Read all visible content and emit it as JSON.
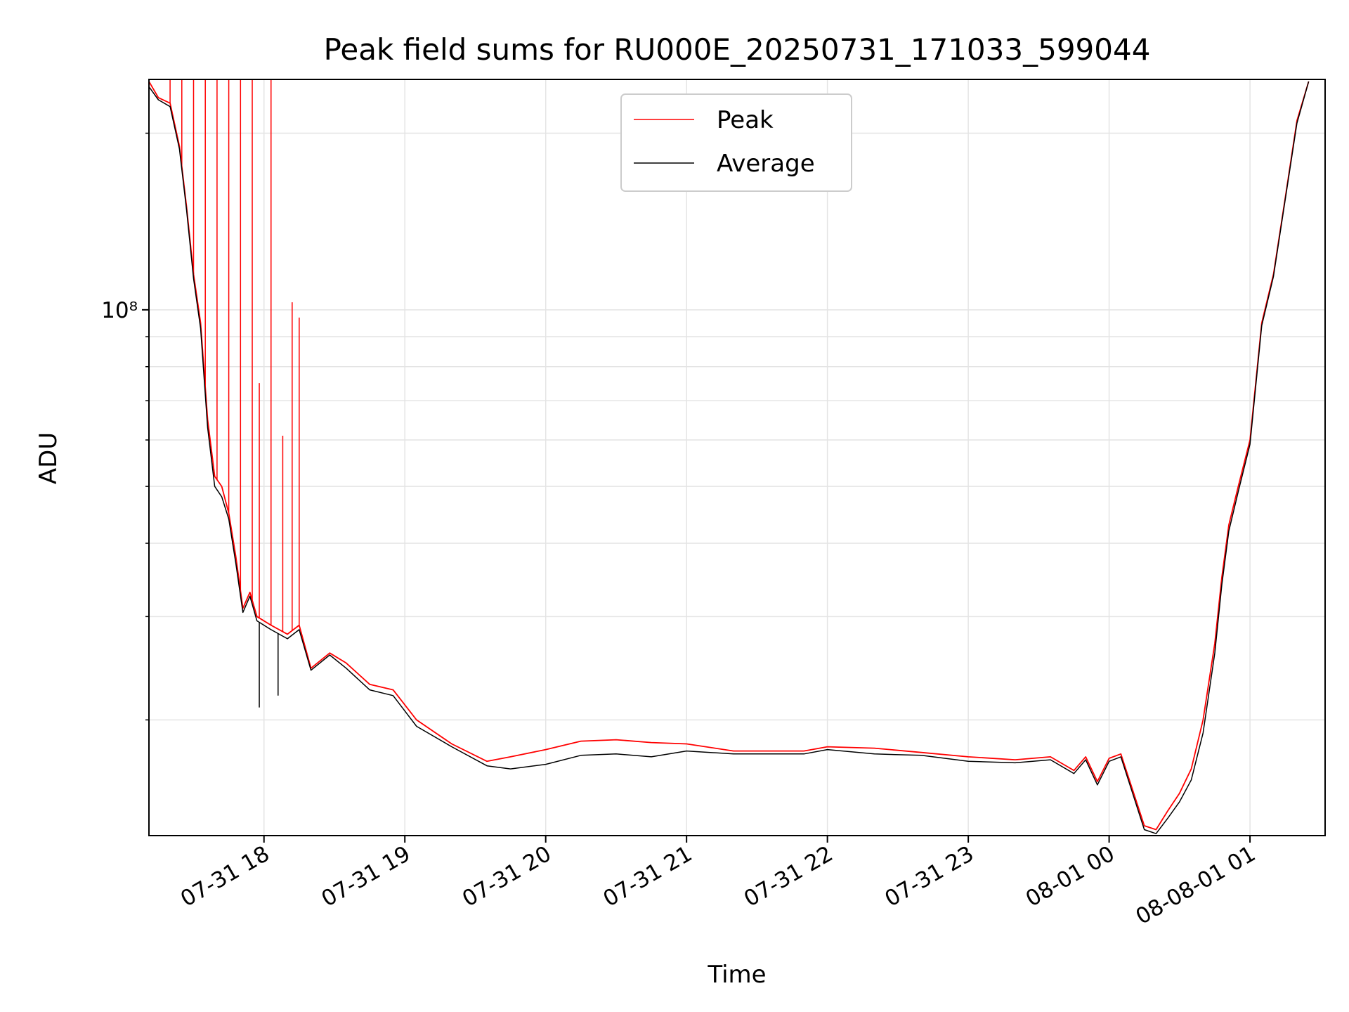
{
  "chart_data": {
    "type": "line",
    "title": "Peak field sums for RU000E_20250731_171033_599044",
    "xlabel": "Time",
    "ylabel": "ADU",
    "y_scale": "log",
    "ylim": [
      12700000,
      247000000
    ],
    "xlim": [
      "2025-07-31 17:11",
      "2025-08-01 01:32"
    ],
    "grid": true,
    "legend_position": "top-center",
    "x_ticks": [
      "07-31 18",
      "07-31 19",
      "07-31 20",
      "07-31 21",
      "07-31 22",
      "07-31 23",
      "08-01 00",
      "08-08-01 01"
    ],
    "x_tick_times": [
      "2025-07-31 18:00",
      "2025-07-31 19:00",
      "2025-07-31 20:00",
      "2025-07-31 21:00",
      "2025-07-31 22:00",
      "2025-07-31 23:00",
      "2025-08-01 00:00",
      "2025-08-01 01:00"
    ],
    "y_major_tick_label": "10⁸",
    "y_major_tick_value": 100000000,
    "y_minor_ticks": [
      20000000,
      30000000,
      40000000,
      50000000,
      60000000,
      70000000,
      80000000,
      90000000,
      200000000
    ],
    "series": [
      {
        "name": "Peak",
        "color": "#ff0000",
        "points": [
          [
            "2025-07-31 17:11",
            245000000
          ],
          [
            "2025-07-31 17:15",
            230000000
          ],
          [
            "2025-07-31 17:20",
            225000000
          ],
          [
            "2025-07-31 17:24",
            190000000
          ],
          [
            "2025-07-31 17:27",
            150000000
          ],
          [
            "2025-07-31 17:30",
            115000000
          ],
          [
            "2025-07-31 17:33",
            95000000
          ],
          [
            "2025-07-31 17:36",
            65000000
          ],
          [
            "2025-07-31 17:39",
            52000000
          ],
          [
            "2025-07-31 17:42",
            50000000
          ],
          [
            "2025-07-31 17:45",
            45000000
          ],
          [
            "2025-07-31 17:48",
            38000000
          ],
          [
            "2025-07-31 17:51",
            31000000
          ],
          [
            "2025-07-31 17:54",
            33000000
          ],
          [
            "2025-07-31 17:57",
            30000000
          ],
          [
            "2025-07-31 18:03",
            29000000
          ],
          [
            "2025-07-31 18:10",
            28000000
          ],
          [
            "2025-07-31 18:15",
            29000000
          ],
          [
            "2025-07-31 18:20",
            24500000
          ],
          [
            "2025-07-31 18:28",
            26000000
          ],
          [
            "2025-07-31 18:35",
            25000000
          ],
          [
            "2025-07-31 18:45",
            23000000
          ],
          [
            "2025-07-31 18:55",
            22500000
          ],
          [
            "2025-07-31 19:05",
            20000000
          ],
          [
            "2025-07-31 19:20",
            18200000
          ],
          [
            "2025-07-31 19:35",
            17000000
          ],
          [
            "2025-07-31 19:45",
            17300000
          ],
          [
            "2025-07-31 20:00",
            17800000
          ],
          [
            "2025-07-31 20:15",
            18400000
          ],
          [
            "2025-07-31 20:30",
            18500000
          ],
          [
            "2025-07-31 20:45",
            18300000
          ],
          [
            "2025-07-31 21:00",
            18200000
          ],
          [
            "2025-07-31 21:20",
            17700000
          ],
          [
            "2025-07-31 21:40",
            17700000
          ],
          [
            "2025-07-31 21:50",
            17700000
          ],
          [
            "2025-07-31 22:00",
            18000000
          ],
          [
            "2025-07-31 22:20",
            17900000
          ],
          [
            "2025-07-31 22:40",
            17600000
          ],
          [
            "2025-07-31 23:00",
            17300000
          ],
          [
            "2025-07-31 23:20",
            17100000
          ],
          [
            "2025-07-31 23:35",
            17300000
          ],
          [
            "2025-07-31 23:45",
            16400000
          ],
          [
            "2025-07-31 23:50",
            17300000
          ],
          [
            "2025-07-31 23:55",
            15700000
          ],
          [
            "2025-08-01 00:00",
            17200000
          ],
          [
            "2025-08-01 00:05",
            17500000
          ],
          [
            "2025-08-01 00:10",
            15200000
          ],
          [
            "2025-08-01 00:15",
            13200000
          ],
          [
            "2025-08-01 00:20",
            13000000
          ],
          [
            "2025-08-01 00:25",
            14000000
          ],
          [
            "2025-08-01 00:30",
            15000000
          ],
          [
            "2025-08-01 00:35",
            16500000
          ],
          [
            "2025-08-01 00:40",
            20000000
          ],
          [
            "2025-08-01 00:45",
            27000000
          ],
          [
            "2025-08-01 00:48",
            35000000
          ],
          [
            "2025-08-01 00:51",
            43000000
          ],
          [
            "2025-08-01 00:55",
            50000000
          ],
          [
            "2025-08-01 01:00",
            60000000
          ],
          [
            "2025-08-01 01:05",
            95000000
          ],
          [
            "2025-08-01 01:10",
            115000000
          ],
          [
            "2025-08-01 01:15",
            155000000
          ],
          [
            "2025-08-01 01:20",
            210000000
          ],
          [
            "2025-08-01 01:25",
            245000000
          ]
        ],
        "spikes": [
          [
            "2025-07-31 17:20",
            247000000
          ],
          [
            "2025-07-31 17:25",
            247000000
          ],
          [
            "2025-07-31 17:30",
            247000000
          ],
          [
            "2025-07-31 17:35",
            247000000
          ],
          [
            "2025-07-31 17:40",
            247000000
          ],
          [
            "2025-07-31 17:45",
            247000000
          ],
          [
            "2025-07-31 17:50",
            247000000
          ],
          [
            "2025-07-31 17:55",
            247000000
          ],
          [
            "2025-07-31 17:58",
            75000000
          ],
          [
            "2025-07-31 18:03",
            247000000
          ],
          [
            "2025-07-31 18:08",
            61000000
          ],
          [
            "2025-07-31 18:12",
            103000000
          ],
          [
            "2025-07-31 18:15",
            97000000
          ]
        ]
      },
      {
        "name": "Average",
        "color": "#000000",
        "points": [
          [
            "2025-07-31 17:11",
            240000000
          ],
          [
            "2025-07-31 17:15",
            228000000
          ],
          [
            "2025-07-31 17:20",
            222000000
          ],
          [
            "2025-07-31 17:24",
            188000000
          ],
          [
            "2025-07-31 17:27",
            148000000
          ],
          [
            "2025-07-31 17:30",
            113000000
          ],
          [
            "2025-07-31 17:33",
            93000000
          ],
          [
            "2025-07-31 17:36",
            63000000
          ],
          [
            "2025-07-31 17:39",
            50000000
          ],
          [
            "2025-07-31 17:42",
            48000000
          ],
          [
            "2025-07-31 17:45",
            44000000
          ],
          [
            "2025-07-31 17:48",
            37000000
          ],
          [
            "2025-07-31 17:51",
            30500000
          ],
          [
            "2025-07-31 17:54",
            32500000
          ],
          [
            "2025-07-31 17:57",
            29500000
          ],
          [
            "2025-07-31 18:03",
            28500000
          ],
          [
            "2025-07-31 18:10",
            27500000
          ],
          [
            "2025-07-31 18:15",
            28500000
          ],
          [
            "2025-07-31 18:20",
            24300000
          ],
          [
            "2025-07-31 18:28",
            25800000
          ],
          [
            "2025-07-31 18:35",
            24500000
          ],
          [
            "2025-07-31 18:45",
            22500000
          ],
          [
            "2025-07-31 18:55",
            22000000
          ],
          [
            "2025-07-31 19:05",
            19500000
          ],
          [
            "2025-07-31 19:20",
            18000000
          ],
          [
            "2025-07-31 19:35",
            16700000
          ],
          [
            "2025-07-31 19:45",
            16500000
          ],
          [
            "2025-07-31 20:00",
            16800000
          ],
          [
            "2025-07-31 20:15",
            17400000
          ],
          [
            "2025-07-31 20:30",
            17500000
          ],
          [
            "2025-07-31 20:45",
            17300000
          ],
          [
            "2025-07-31 21:00",
            17700000
          ],
          [
            "2025-07-31 21:20",
            17500000
          ],
          [
            "2025-07-31 21:40",
            17500000
          ],
          [
            "2025-07-31 21:50",
            17500000
          ],
          [
            "2025-07-31 22:00",
            17800000
          ],
          [
            "2025-07-31 22:20",
            17500000
          ],
          [
            "2025-07-31 22:40",
            17400000
          ],
          [
            "2025-07-31 23:00",
            17000000
          ],
          [
            "2025-07-31 23:20",
            16900000
          ],
          [
            "2025-07-31 23:35",
            17100000
          ],
          [
            "2025-07-31 23:45",
            16200000
          ],
          [
            "2025-07-31 23:50",
            17100000
          ],
          [
            "2025-07-31 23:55",
            15500000
          ],
          [
            "2025-08-01 00:00",
            17000000
          ],
          [
            "2025-08-01 00:05",
            17300000
          ],
          [
            "2025-08-01 00:10",
            15000000
          ],
          [
            "2025-08-01 00:15",
            13000000
          ],
          [
            "2025-08-01 00:20",
            12800000
          ],
          [
            "2025-08-01 00:25",
            13600000
          ],
          [
            "2025-08-01 00:30",
            14500000
          ],
          [
            "2025-08-01 00:35",
            15800000
          ],
          [
            "2025-08-01 00:40",
            19000000
          ],
          [
            "2025-08-01 00:45",
            26000000
          ],
          [
            "2025-08-01 00:48",
            34000000
          ],
          [
            "2025-08-01 00:51",
            42000000
          ],
          [
            "2025-08-01 00:55",
            49000000
          ],
          [
            "2025-08-01 01:00",
            59000000
          ],
          [
            "2025-08-01 01:05",
            94000000
          ],
          [
            "2025-08-01 01:10",
            114000000
          ],
          [
            "2025-08-01 01:15",
            154000000
          ],
          [
            "2025-08-01 01:20",
            208000000
          ],
          [
            "2025-08-01 01:25",
            245000000
          ]
        ],
        "spikes": [
          [
            "2025-07-31 17:58",
            21000000
          ],
          [
            "2025-07-31 18:06",
            22000000
          ]
        ]
      }
    ]
  }
}
